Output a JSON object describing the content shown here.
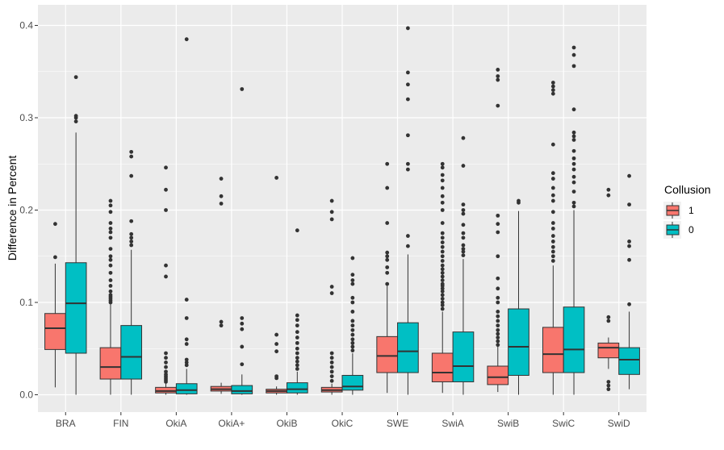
{
  "chart_data": {
    "type": "boxplot",
    "title": "",
    "xlabel": "",
    "ylabel": "Difference in Percent",
    "ylim": [
      -0.018,
      0.42
    ],
    "yticks": [
      0.0,
      0.1,
      0.2,
      0.3,
      0.4
    ],
    "ytick_labels": [
      "0.0",
      "0.1",
      "0.2",
      "0.3",
      "0.4"
    ],
    "categories": [
      "BRA",
      "FIN",
      "OkiA",
      "OkiA+",
      "OkiB",
      "OkiC",
      "SWE",
      "SwiA",
      "SwiB",
      "SwiC",
      "SwiD"
    ],
    "legend": {
      "title": "Collusion",
      "position": "right",
      "entries": [
        {
          "label": "1",
          "color": "#F8766D"
        },
        {
          "label": "0",
          "color": "#00BFC4"
        }
      ]
    },
    "series": [
      {
        "name": "1",
        "color": "#F8766D",
        "boxes": [
          {
            "whisker_low": 0.008,
            "q1": 0.049,
            "median": 0.072,
            "q3": 0.088,
            "whisker_high": 0.142,
            "outliers": [
              0.149,
              0.185
            ]
          },
          {
            "whisker_low": 0.0,
            "q1": 0.017,
            "median": 0.03,
            "q3": 0.051,
            "whisker_high": 0.099,
            "outliers": [
              0.1,
              0.102,
              0.104,
              0.106,
              0.108,
              0.112,
              0.118,
              0.124,
              0.132,
              0.14,
              0.146,
              0.15,
              0.158,
              0.17,
              0.176,
              0.18,
              0.186,
              0.198,
              0.205,
              0.21
            ]
          },
          {
            "whisker_low": 0.0,
            "q1": 0.002,
            "median": 0.004,
            "q3": 0.008,
            "whisker_high": 0.012,
            "outliers": [
              0.014,
              0.016,
              0.018,
              0.02,
              0.022,
              0.025,
              0.03,
              0.035,
              0.04,
              0.045,
              0.128,
              0.14,
              0.2,
              0.222,
              0.246
            ]
          },
          {
            "whisker_low": 0.001,
            "q1": 0.004,
            "median": 0.006,
            "q3": 0.009,
            "whisker_high": 0.013,
            "outliers": [
              0.075,
              0.079,
              0.207,
              0.215,
              0.234
            ]
          },
          {
            "whisker_low": 0.0,
            "q1": 0.002,
            "median": 0.004,
            "q3": 0.006,
            "whisker_high": 0.009,
            "outliers": [
              0.018,
              0.02,
              0.047,
              0.055,
              0.065,
              0.235
            ]
          },
          {
            "whisker_low": 0.0,
            "q1": 0.003,
            "median": 0.005,
            "q3": 0.008,
            "whisker_high": 0.012,
            "outliers": [
              0.015,
              0.02,
              0.025,
              0.03,
              0.035,
              0.04,
              0.045,
              0.11,
              0.117,
              0.19,
              0.198,
              0.21
            ]
          },
          {
            "whisker_low": 0.002,
            "q1": 0.024,
            "median": 0.042,
            "q3": 0.063,
            "whisker_high": 0.118,
            "outliers": [
              0.12,
              0.132,
              0.138,
              0.146,
              0.15,
              0.154,
              0.186,
              0.224,
              0.25
            ]
          },
          {
            "whisker_low": 0.002,
            "q1": 0.014,
            "median": 0.024,
            "q3": 0.045,
            "whisker_high": 0.09,
            "outliers": [
              0.093,
              0.097,
              0.1,
              0.104,
              0.108,
              0.112,
              0.115,
              0.118,
              0.12,
              0.124,
              0.128,
              0.132,
              0.136,
              0.14,
              0.145,
              0.15,
              0.155,
              0.16,
              0.165,
              0.17,
              0.175,
              0.186,
              0.2,
              0.208,
              0.215,
              0.224,
              0.232,
              0.238,
              0.246,
              0.25
            ]
          },
          {
            "whisker_low": 0.003,
            "q1": 0.011,
            "median": 0.019,
            "q3": 0.031,
            "whisker_high": 0.052,
            "outliers": [
              0.054,
              0.058,
              0.062,
              0.066,
              0.07,
              0.075,
              0.08,
              0.085,
              0.09,
              0.1,
              0.105,
              0.115,
              0.126,
              0.15,
              0.176,
              0.185,
              0.194,
              0.313,
              0.341,
              0.345,
              0.352
            ]
          },
          {
            "whisker_low": 0.0,
            "q1": 0.024,
            "median": 0.044,
            "q3": 0.073,
            "whisker_high": 0.14,
            "outliers": [
              0.145,
              0.15,
              0.155,
              0.16,
              0.166,
              0.172,
              0.18,
              0.186,
              0.198,
              0.21,
              0.216,
              0.224,
              0.234,
              0.24,
              0.271,
              0.326,
              0.33,
              0.334,
              0.338
            ]
          },
          {
            "whisker_low": 0.028,
            "q1": 0.04,
            "median": 0.051,
            "q3": 0.056,
            "whisker_high": 0.062,
            "outliers": [
              0.006,
              0.01,
              0.014,
              0.08,
              0.084,
              0.216,
              0.222
            ]
          }
        ]
      },
      {
        "name": "0",
        "color": "#00BFC4",
        "boxes": [
          {
            "whisker_low": 0.0,
            "q1": 0.045,
            "median": 0.099,
            "q3": 0.143,
            "whisker_high": 0.284,
            "outliers": [
              0.296,
              0.3,
              0.302,
              0.344
            ]
          },
          {
            "whisker_low": 0.0,
            "q1": 0.017,
            "median": 0.041,
            "q3": 0.075,
            "whisker_high": 0.157,
            "outliers": [
              0.162,
              0.166,
              0.17,
              0.174,
              0.188,
              0.237,
              0.258,
              0.263
            ]
          },
          {
            "whisker_low": 0.0,
            "q1": 0.001,
            "median": 0.005,
            "q3": 0.012,
            "whisker_high": 0.028,
            "outliers": [
              0.032,
              0.035,
              0.038,
              0.055,
              0.06,
              0.083,
              0.103,
              0.385
            ]
          },
          {
            "whisker_low": 0.0,
            "q1": 0.001,
            "median": 0.004,
            "q3": 0.01,
            "whisker_high": 0.022,
            "outliers": [
              0.033,
              0.052,
              0.071,
              0.077,
              0.083,
              0.331
            ]
          },
          {
            "whisker_low": 0.0,
            "q1": 0.002,
            "median": 0.006,
            "q3": 0.013,
            "whisker_high": 0.025,
            "outliers": [
              0.028,
              0.032,
              0.036,
              0.04,
              0.045,
              0.05,
              0.056,
              0.062,
              0.068,
              0.075,
              0.081,
              0.086,
              0.178
            ]
          },
          {
            "whisker_low": 0.0,
            "q1": 0.005,
            "median": 0.009,
            "q3": 0.021,
            "whisker_high": 0.045,
            "outliers": [
              0.048,
              0.052,
              0.056,
              0.06,
              0.065,
              0.07,
              0.075,
              0.08,
              0.09,
              0.1,
              0.105,
              0.12,
              0.124,
              0.13,
              0.148
            ]
          },
          {
            "whisker_low": 0.0,
            "q1": 0.024,
            "median": 0.047,
            "q3": 0.078,
            "whisker_high": 0.152,
            "outliers": [
              0.161,
              0.172,
              0.244,
              0.25,
              0.281,
              0.32,
              0.336,
              0.349,
              0.397
            ]
          },
          {
            "whisker_low": 0.0,
            "q1": 0.014,
            "median": 0.031,
            "q3": 0.068,
            "whisker_high": 0.147,
            "outliers": [
              0.151,
              0.155,
              0.158,
              0.162,
              0.17,
              0.175,
              0.184,
              0.196,
              0.2,
              0.206,
              0.248,
              0.278
            ]
          },
          {
            "whisker_low": 0.0,
            "q1": 0.021,
            "median": 0.052,
            "q3": 0.093,
            "whisker_high": 0.199,
            "outliers": [
              0.208,
              0.21
            ]
          },
          {
            "whisker_low": 0.0,
            "q1": 0.024,
            "median": 0.049,
            "q3": 0.095,
            "whisker_high": 0.2,
            "outliers": [
              0.204,
              0.208,
              0.22,
              0.23,
              0.236,
              0.244,
              0.25,
              0.256,
              0.264,
              0.276,
              0.28,
              0.284,
              0.309,
              0.356,
              0.368,
              0.376
            ]
          },
          {
            "whisker_low": 0.006,
            "q1": 0.022,
            "median": 0.038,
            "q3": 0.051,
            "whisker_high": 0.09,
            "outliers": [
              0.098,
              0.146,
              0.161,
              0.166,
              0.206,
              0.237
            ]
          }
        ]
      }
    ]
  }
}
